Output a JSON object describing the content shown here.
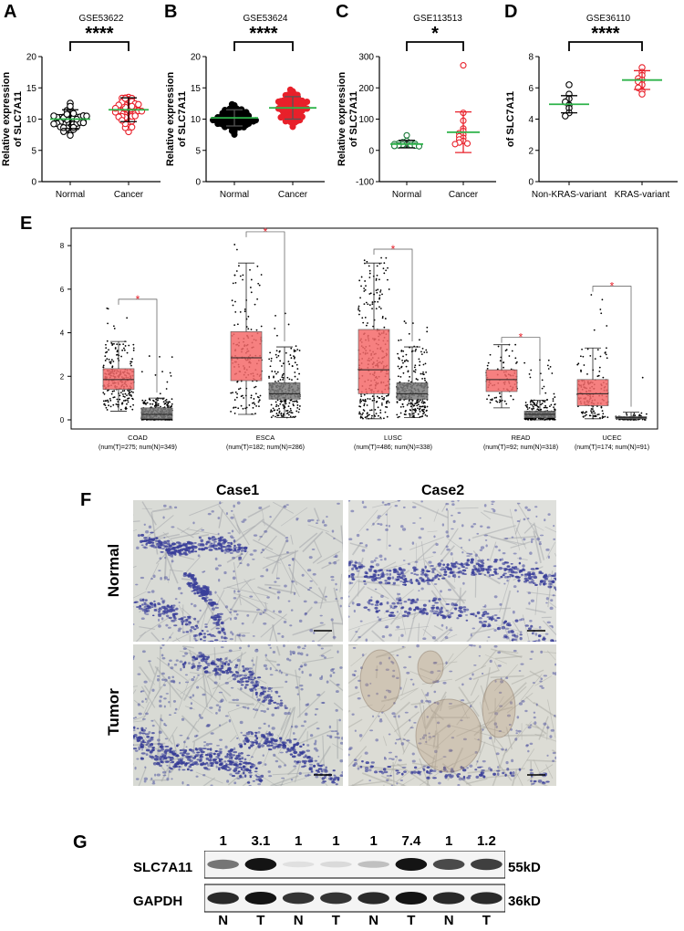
{
  "panels": {
    "A": "A",
    "B": "B",
    "C": "C",
    "D": "D",
    "E": "E",
    "F": "F",
    "G": "G"
  },
  "chart_data": [
    {
      "type": "scatter",
      "panel": "A",
      "title": "GSE53622",
      "ylabel": "Relative expression of SLC7A11",
      "ylabel_lines": [
        "Relative expression",
        "of SLC7A11"
      ],
      "categories": [
        "Normal",
        "Cancer"
      ],
      "yticks": [
        0,
        5,
        10,
        15,
        20
      ],
      "ylim": [
        0,
        20
      ],
      "series": [
        {
          "category": "Normal",
          "mean": 10.0,
          "sd": 1.5,
          "n": 60,
          "min": 6.0,
          "max": 14.0,
          "color": "#000000"
        },
        {
          "category": "Cancer",
          "mean": 11.5,
          "sd": 1.9,
          "n": 60,
          "min": 7.5,
          "max": 15.0,
          "color": "#e8202a"
        }
      ],
      "significance": "****"
    },
    {
      "type": "scatter",
      "panel": "B",
      "title": "GSE53624",
      "ylabel": "Relative expression of SLC7A11",
      "ylabel_lines": [
        "Relative expression",
        "of SLC7A11"
      ],
      "categories": [
        "Normal",
        "Cancer"
      ],
      "yticks": [
        0,
        5,
        10,
        15,
        20
      ],
      "ylim": [
        0,
        20
      ],
      "series": [
        {
          "category": "Normal",
          "mean": 10.2,
          "sd": 1.3,
          "n": 119,
          "min": 7.0,
          "max": 13.5,
          "color": "#000000"
        },
        {
          "category": "Cancer",
          "mean": 11.8,
          "sd": 1.8,
          "n": 119,
          "min": 7.0,
          "max": 14.8,
          "color": "#e8202a"
        }
      ],
      "significance": "****"
    },
    {
      "type": "scatter",
      "panel": "C",
      "title": "GSE113513",
      "ylabel": "Relative expression of SLC7A11",
      "ylabel_lines": [
        "Relative expression",
        "of SLC7A11"
      ],
      "categories": [
        "Normal",
        "Cancer"
      ],
      "yticks": [
        -100,
        0,
        100,
        200,
        300
      ],
      "ylim": [
        -100,
        300
      ],
      "series": [
        {
          "category": "Normal",
          "mean": 20,
          "sd": 12,
          "n": 14,
          "values": [
            48,
            30,
            26,
            24,
            22,
            21,
            20,
            19,
            18,
            17,
            16,
            15,
            14,
            13
          ],
          "color": "#1a7a3a"
        },
        {
          "category": "Cancer",
          "mean": 58,
          "sd": 65,
          "n": 14,
          "values": [
            272,
            120,
            95,
            70,
            62,
            55,
            50,
            45,
            40,
            35,
            30,
            25,
            22,
            20
          ],
          "color": "#e8202a"
        }
      ],
      "significance": "*"
    },
    {
      "type": "scatter",
      "panel": "D",
      "title": "GSE36110",
      "ylabel": "Relative expression of SLC7A11",
      "ylabel_lines": [
        "Relative expression",
        "of SLC7A11"
      ],
      "categories": [
        "Non-KRAS-variant",
        "KRAS-variant"
      ],
      "yticks": [
        0,
        2,
        4,
        6,
        8
      ],
      "ylim": [
        0,
        8
      ],
      "series": [
        {
          "category": "Non-KRAS-variant",
          "mean": 4.95,
          "sd": 0.55,
          "values": [
            6.2,
            5.6,
            5.3,
            5.1,
            4.9,
            4.7,
            4.4,
            4.2
          ],
          "color": "#000000"
        },
        {
          "category": "KRAS-variant",
          "mean": 6.5,
          "sd": 0.6,
          "values": [
            7.3,
            7.0,
            6.8,
            6.6,
            6.5,
            6.4,
            6.2,
            6.0,
            5.8,
            5.6
          ],
          "color": "#e8202a"
        }
      ],
      "significance": "****"
    },
    {
      "type": "box",
      "panel": "E",
      "yticks": [
        0,
        2,
        4,
        6,
        8
      ],
      "ylim": [
        0,
        8.8
      ],
      "groups": [
        {
          "label": "COAD",
          "sub": "(num(T)=275; num(N)=349)",
          "tumor": {
            "q1": 1.4,
            "median": 1.85,
            "q3": 2.35,
            "lo": 0.4,
            "hi": 3.6,
            "max": 5.2,
            "n": 275
          },
          "normal": {
            "q1": 0.05,
            "median": 0.25,
            "q3": 0.55,
            "lo": 0.0,
            "hi": 1.0,
            "max": 3.0,
            "n": 349
          }
        },
        {
          "label": "ESCA",
          "sub": "(num(T)=182; num(N)=286)",
          "tumor": {
            "q1": 1.8,
            "median": 2.85,
            "q3": 4.05,
            "lo": 0.25,
            "hi": 7.2,
            "max": 8.3,
            "n": 182
          },
          "normal": {
            "q1": 0.95,
            "median": 1.2,
            "q3": 1.7,
            "lo": 0.1,
            "hi": 3.35,
            "max": 4.9,
            "n": 286
          }
        },
        {
          "label": "LUSC",
          "sub": "(num(T)=486; num(N)=338)",
          "tumor": {
            "q1": 1.2,
            "median": 2.3,
            "q3": 4.15,
            "lo": 0.05,
            "hi": 7.2,
            "max": 7.5,
            "n": 486
          },
          "normal": {
            "q1": 0.95,
            "median": 1.2,
            "q3": 1.7,
            "lo": 0.1,
            "hi": 3.35,
            "max": 4.7,
            "n": 338
          }
        },
        {
          "label": "READ",
          "sub": "(num(T)=92; num(N)=318)",
          "tumor": {
            "q1": 1.3,
            "median": 1.85,
            "q3": 2.3,
            "lo": 0.55,
            "hi": 3.45,
            "max": 3.45,
            "n": 92
          },
          "normal": {
            "q1": 0.1,
            "median": 0.25,
            "q3": 0.4,
            "lo": 0.0,
            "hi": 0.9,
            "max": 3.0,
            "n": 318
          }
        },
        {
          "label": "UCEC",
          "sub": "(num(T)=174; num(N)=91)",
          "tumor": {
            "q1": 0.65,
            "median": 1.2,
            "q3": 1.85,
            "lo": 0.05,
            "hi": 3.3,
            "max": 5.8,
            "n": 174
          },
          "normal": {
            "q1": 0.05,
            "median": 0.1,
            "q3": 0.15,
            "lo": 0.0,
            "hi": 0.35,
            "max": 3.1,
            "n": 91
          }
        }
      ],
      "significance_mark": "*",
      "colors": {
        "tumor": "#f46a6a",
        "normal": "#7a7a7a",
        "sig": "#e8202a"
      }
    },
    {
      "type": "table",
      "panel": "G",
      "columns": [
        "N",
        "T",
        "N",
        "T",
        "N",
        "T",
        "N",
        "T"
      ],
      "ratios": [
        "1",
        "3.1",
        "1",
        "1",
        "1",
        "7.4",
        "1",
        "1.2"
      ],
      "proteins": [
        {
          "name": "SLC7A11",
          "kd": "55kD",
          "intensity": [
            0.55,
            1.0,
            0.05,
            0.08,
            0.2,
            1.0,
            0.75,
            0.8
          ]
        },
        {
          "name": "GAPDH",
          "kd": "36kD",
          "intensity": [
            0.9,
            1.0,
            0.85,
            0.85,
            0.9,
            1.0,
            0.9,
            0.9
          ]
        }
      ]
    }
  ],
  "histology": {
    "case1": "Case1",
    "case2": "Case2",
    "normal": "Normal",
    "tumor": "Tumor"
  }
}
